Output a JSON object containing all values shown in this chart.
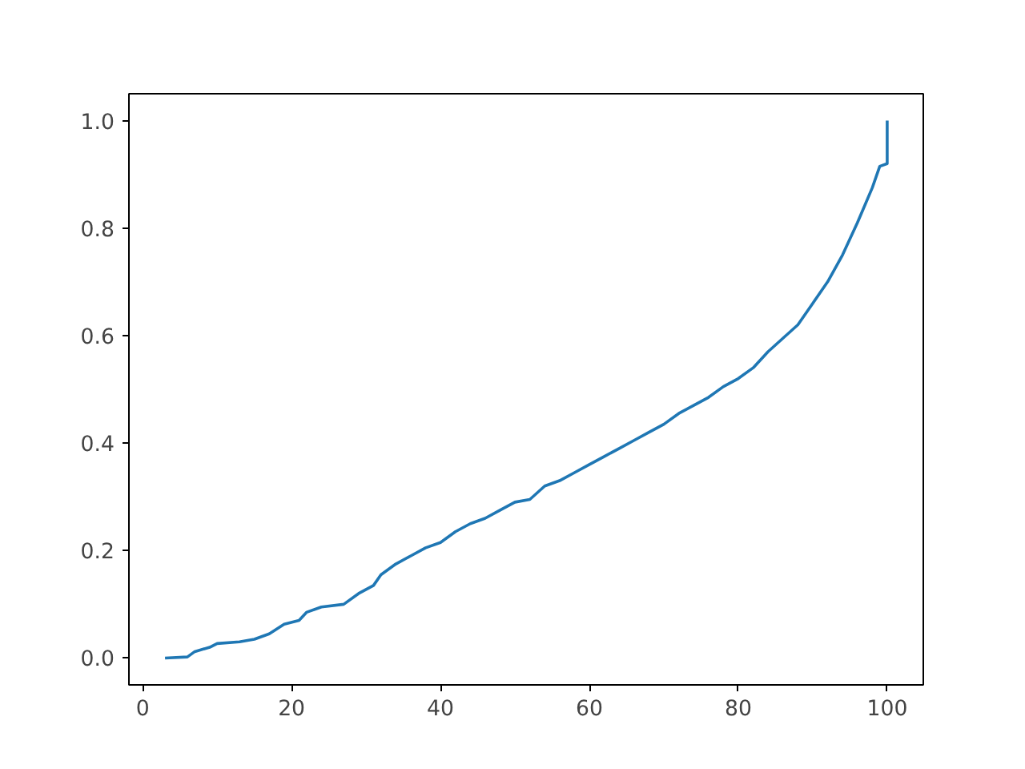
{
  "chart_data": {
    "type": "line",
    "x": [
      3,
      6,
      7,
      9,
      10,
      13,
      15,
      17,
      19,
      21,
      22,
      24,
      27,
      29,
      31,
      32,
      34,
      36,
      38,
      40,
      42,
      44,
      46,
      48,
      50,
      52,
      54,
      56,
      58,
      60,
      62,
      64,
      66,
      68,
      70,
      72,
      74,
      76,
      78,
      80,
      82,
      84,
      86,
      88,
      90,
      92,
      94,
      96,
      98,
      99,
      100,
      100
    ],
    "series": [
      {
        "color": "#1f77b4",
        "values": [
          0.0,
          0.002,
          0.012,
          0.02,
          0.027,
          0.03,
          0.035,
          0.045,
          0.063,
          0.07,
          0.085,
          0.095,
          0.1,
          0.12,
          0.135,
          0.155,
          0.175,
          0.19,
          0.205,
          0.215,
          0.235,
          0.25,
          0.26,
          0.275,
          0.29,
          0.295,
          0.32,
          0.33,
          0.345,
          0.36,
          0.375,
          0.39,
          0.405,
          0.42,
          0.435,
          0.455,
          0.47,
          0.485,
          0.505,
          0.52,
          0.54,
          0.57,
          0.595,
          0.62,
          0.66,
          0.7,
          0.75,
          0.81,
          0.875,
          0.915,
          0.92,
          1.0
        ]
      }
    ],
    "xlim": [
      -1.85,
      104.85
    ],
    "ylim": [
      -0.05,
      1.05
    ],
    "xticks": [
      0,
      20,
      40,
      60,
      80,
      100
    ],
    "yticks": [
      {
        "value": 0,
        "label": "0.0"
      },
      {
        "value": 0.2,
        "label": "0.2"
      },
      {
        "value": 0.4,
        "label": "0.4"
      },
      {
        "value": 0.6,
        "label": "0.6"
      },
      {
        "value": 0.8,
        "label": "0.8"
      },
      {
        "value": 1,
        "label": "1.0"
      }
    ],
    "grid": false
  }
}
